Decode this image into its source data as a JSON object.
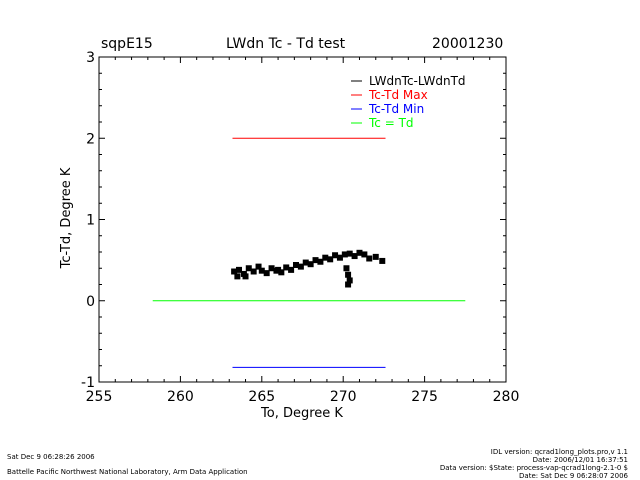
{
  "header": {
    "site": "sqpE15",
    "date": "20001230"
  },
  "footer": {
    "left_timestamp": "Sat Dec  9 06:28:26 2006",
    "left_org": "Battelle Pacific Northwest National Laboratory, Arm Data Application",
    "right_lines": [
      "IDL version: qcrad1long_plots.pro,v 1.1",
      "Date: 2006/12/01 16:37:51",
      "Data version: $State: process-vap-qcrad1long-2.1-0 $",
      "Date: Sat Dec  9 06:28:07 2006"
    ]
  },
  "chart_data": {
    "type": "scatter",
    "title": "LWdn Tc - Td test",
    "xlabel": "To, Degree K",
    "ylabel": "Tc-Td, Degree K",
    "xlim": [
      255,
      280
    ],
    "ylim": [
      -1,
      3
    ],
    "xticks": [
      "255",
      "260",
      "265",
      "270",
      "275",
      "280"
    ],
    "yticks": [
      "-1",
      "0",
      "1",
      "2",
      "3"
    ],
    "grid": false,
    "legend_position": "top-right",
    "legend": [
      {
        "label": "LWdnTc-LWdnTd",
        "color": "#000000"
      },
      {
        "label": "Tc-Td Max",
        "color": "#ff0000"
      },
      {
        "label": "Tc-Td Min",
        "color": "#0000ff"
      },
      {
        "label": "Tc = Td",
        "color": "#00ff00"
      }
    ],
    "series": [
      {
        "name": "LWdnTc-LWdnTd",
        "kind": "points",
        "color": "#000000",
        "points": [
          [
            263.3,
            0.36
          ],
          [
            263.6,
            0.38
          ],
          [
            263.9,
            0.33
          ],
          [
            264.2,
            0.4
          ],
          [
            264.5,
            0.36
          ],
          [
            264.8,
            0.42
          ],
          [
            265.0,
            0.37
          ],
          [
            265.3,
            0.34
          ],
          [
            265.6,
            0.4
          ],
          [
            265.9,
            0.37
          ],
          [
            266.2,
            0.35
          ],
          [
            266.5,
            0.41
          ],
          [
            266.8,
            0.38
          ],
          [
            267.1,
            0.44
          ],
          [
            267.4,
            0.42
          ],
          [
            267.7,
            0.47
          ],
          [
            268.0,
            0.45
          ],
          [
            268.3,
            0.5
          ],
          [
            268.6,
            0.48
          ],
          [
            268.9,
            0.53
          ],
          [
            269.2,
            0.51
          ],
          [
            269.5,
            0.56
          ],
          [
            269.8,
            0.53
          ],
          [
            270.1,
            0.57
          ],
          [
            270.4,
            0.58
          ],
          [
            270.7,
            0.55
          ],
          [
            271.0,
            0.59
          ],
          [
            271.3,
            0.57
          ],
          [
            271.6,
            0.52
          ],
          [
            272.0,
            0.54
          ],
          [
            272.4,
            0.49
          ],
          [
            270.2,
            0.4
          ],
          [
            270.3,
            0.32
          ],
          [
            270.4,
            0.25
          ],
          [
            270.3,
            0.2
          ],
          [
            264.0,
            0.3
          ],
          [
            263.5,
            0.3
          ],
          [
            266.0,
            0.38
          ]
        ]
      },
      {
        "name": "Tc-Td Max",
        "kind": "line",
        "color": "#ff0000",
        "x": [
          263.2,
          272.6
        ],
        "y": [
          2.0,
          2.0
        ]
      },
      {
        "name": "Tc-Td Min",
        "kind": "line",
        "color": "#0000ff",
        "x": [
          263.2,
          272.6
        ],
        "y": [
          -0.82,
          -0.82
        ]
      },
      {
        "name": "Tc = Td",
        "kind": "line",
        "color": "#00ff00",
        "x": [
          258.3,
          277.5
        ],
        "y": [
          0.0,
          0.0
        ]
      }
    ]
  }
}
